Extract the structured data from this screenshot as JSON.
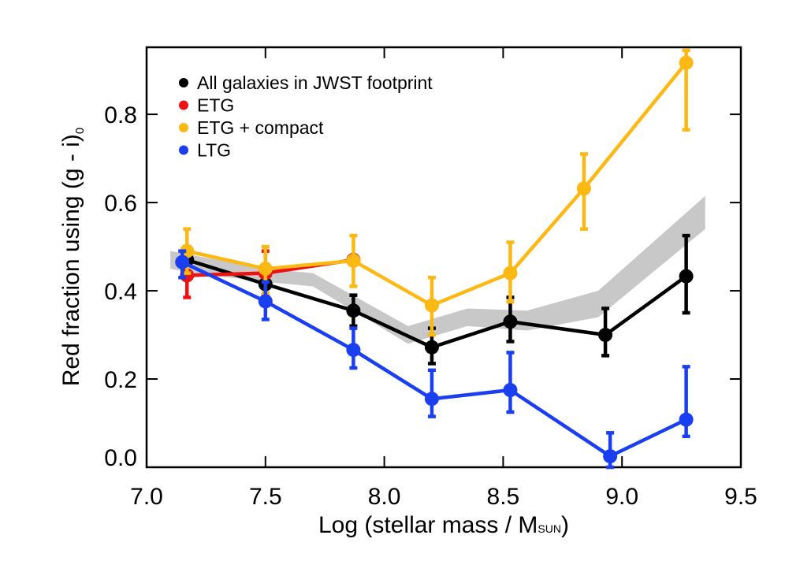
{
  "chart_data": {
    "type": "line",
    "xlabel": [
      "Log (stellar mass / M",
      "SUN",
      ")"
    ],
    "ylabel": [
      "Red fraction using (g - i)",
      "0"
    ],
    "xlim": [
      7.0,
      9.5
    ],
    "ylim": [
      0,
      0.952
    ],
    "xticks": [
      {
        "value": 7,
        "label": "7.0"
      },
      7.5,
      {
        "value": 8,
        "label": "8.0"
      },
      8.5,
      {
        "value": 9,
        "label": "9.0"
      },
      9.5
    ],
    "yticks": [
      {
        "value": 0,
        "label": "0.0"
      },
      0.2,
      0.4,
      0.6,
      0.8
    ],
    "band": {
      "color": "#c8c8c8",
      "x": [
        7.1,
        7.2,
        7.5,
        7.7,
        8.1,
        8.35,
        8.6,
        8.9,
        9.35
      ],
      "lower": [
        0.45,
        0.44,
        0.42,
        0.41,
        0.28,
        0.32,
        0.31,
        0.34,
        0.54
      ],
      "upper": [
        0.49,
        0.48,
        0.45,
        0.44,
        0.32,
        0.36,
        0.355,
        0.4,
        0.615
      ]
    },
    "series": [
      {
        "name": "All galaxies in JWST footprint",
        "color": "#000000",
        "x": [
          7.17,
          7.5,
          7.87,
          8.2,
          8.53,
          8.93,
          9.27
        ],
        "values": [
          0.47,
          0.415,
          0.355,
          0.272,
          0.33,
          0.3,
          0.433
        ],
        "low": [
          0.44,
          0.39,
          0.32,
          0.235,
          0.285,
          0.253,
          0.35
        ],
        "high": [
          0.5,
          0.44,
          0.39,
          0.315,
          0.385,
          0.36,
          0.525
        ]
      },
      {
        "name": "ETG",
        "color": "#ee1111",
        "x": [
          7.17,
          7.5,
          7.87
        ],
        "values": [
          0.435,
          0.44,
          0.47
        ],
        "low": [
          0.385,
          0.39,
          null
        ],
        "high": [
          0.49,
          0.49,
          null
        ]
      },
      {
        "name": "ETG + compact",
        "color": "#fcb813",
        "x": [
          7.17,
          7.5,
          7.87,
          8.2,
          8.53,
          8.84,
          9.27
        ],
        "values": [
          0.49,
          0.45,
          0.468,
          0.367,
          0.44,
          0.632,
          0.917
        ],
        "low": [
          0.44,
          0.395,
          0.41,
          0.3,
          0.375,
          0.54,
          0.765
        ],
        "high": [
          0.54,
          0.5,
          0.525,
          0.43,
          0.51,
          0.71,
          0.945
        ]
      },
      {
        "name": "LTG",
        "color": "#1a3ff0",
        "x": [
          7.15,
          7.5,
          7.87,
          8.2,
          8.53,
          8.95,
          9.27
        ],
        "values": [
          0.465,
          0.376,
          0.266,
          0.155,
          0.175,
          0.025,
          0.108
        ],
        "low": [
          0.43,
          0.335,
          0.225,
          0.115,
          0.125,
          0.0,
          0.07
        ],
        "high": [
          0.49,
          0.42,
          0.315,
          0.22,
          0.26,
          0.078,
          0.228
        ]
      }
    ]
  }
}
